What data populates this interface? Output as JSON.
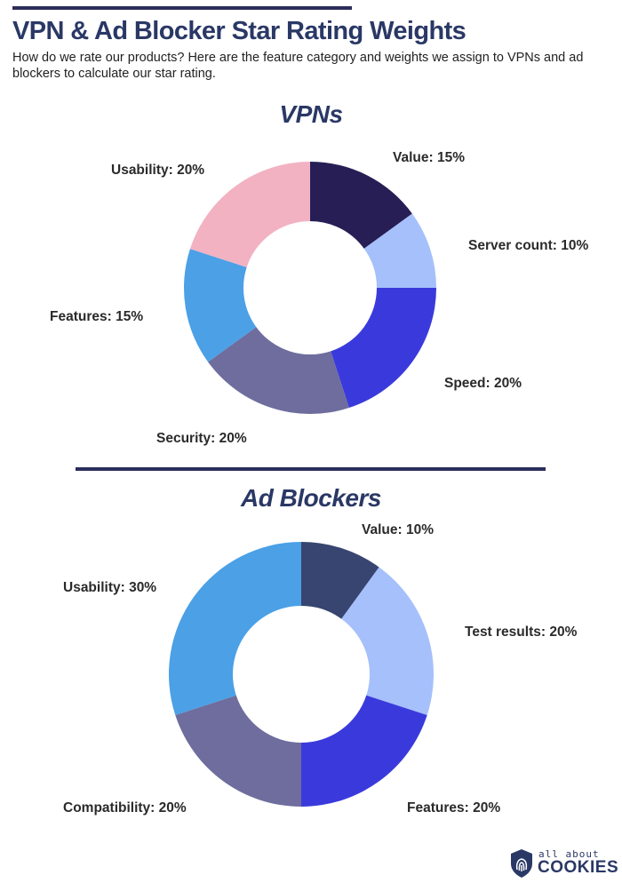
{
  "page": {
    "title": "VPN & Ad Blocker Star Rating Weights",
    "subtitle": "How do we rate our products? Here are the feature category and weights we assign to VPNs and ad blockers to calculate our star rating."
  },
  "chart_data": [
    {
      "type": "pie",
      "donut": true,
      "title": "VPNs",
      "slices": [
        {
          "label": "Value: 15%",
          "category": "Value",
          "value": 15,
          "color": "#261e55"
        },
        {
          "label": "Server count: 10%",
          "category": "Server count",
          "value": 10,
          "color": "#a5c0fb"
        },
        {
          "label": "Speed: 20%",
          "category": "Speed",
          "value": 20,
          "color": "#3a3adc"
        },
        {
          "label": "Security: 20%",
          "category": "Security",
          "value": 20,
          "color": "#6e6d9e"
        },
        {
          "label": "Features: 15%",
          "category": "Features",
          "value": 15,
          "color": "#4ba0e6"
        },
        {
          "label": "Usability: 20%",
          "category": "Usability",
          "value": 20,
          "color": "#f2b2c2"
        }
      ]
    },
    {
      "type": "pie",
      "donut": true,
      "title": "Ad Blockers",
      "slices": [
        {
          "label": "Value: 10%",
          "category": "Value",
          "value": 10,
          "color": "#374570"
        },
        {
          "label": "Test results: 20%",
          "category": "Test results",
          "value": 20,
          "color": "#a5c0fb"
        },
        {
          "label": "Features: 20%",
          "category": "Features",
          "value": 20,
          "color": "#3a3adc"
        },
        {
          "label": "Compatibility: 20%",
          "category": "Compatibility",
          "value": 20,
          "color": "#6e6d9e"
        },
        {
          "label": "Usability: 30%",
          "category": "Usability",
          "value": 30,
          "color": "#4ba0e6"
        }
      ]
    }
  ],
  "logo": {
    "small_text": "all about",
    "big_text": "COOKIES",
    "icon": "shield-fingerprint-icon"
  }
}
